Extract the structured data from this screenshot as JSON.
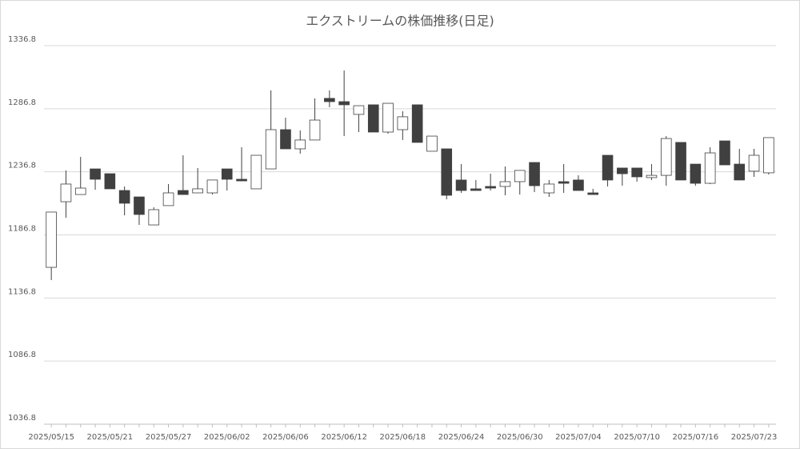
{
  "chart_data": {
    "type": "candlestick",
    "title": "エクストリームの株価推移(日足)",
    "categories": [
      "2025/05/15",
      null,
      null,
      null,
      "2025/05/21",
      null,
      null,
      null,
      "2025/05/27",
      null,
      null,
      null,
      "2025/06/02",
      null,
      null,
      null,
      "2025/06/06",
      null,
      null,
      null,
      "2025/06/12",
      null,
      null,
      null,
      "2025/06/18",
      null,
      null,
      null,
      "2025/06/24",
      null,
      null,
      null,
      "2025/06/30",
      null,
      null,
      null,
      "2025/07/04",
      null,
      null,
      null,
      "2025/07/10",
      null,
      null,
      null,
      "2025/07/16",
      null,
      null,
      null,
      "2025/07/23",
      null
    ],
    "open": [
      1161.1,
      1213.1,
      1218.8,
      1239.1,
      1235.3,
      1222.0,
      1216.9,
      1194.7,
      1210.0,
      1222.0,
      1220.1,
      1220.1,
      1239.1,
      1230.9,
      1223.3,
      1239.1,
      1270.2,
      1255.0,
      1262.0,
      1295.0,
      1292.4,
      1282.3,
      1289.9,
      1268.3,
      1270.2,
      1289.9,
      1253.1,
      1255.0,
      1230.3,
      1223.3,
      1225.2,
      1225.2,
      1229.0,
      1244.2,
      1220.1,
      1229.0,
      1230.3,
      1220.1,
      1249.9,
      1239.8,
      1239.8,
      1232.2,
      1234.0,
      1260.1,
      1242.9,
      1227.7,
      1261.3,
      1242.9,
      1237.3,
      1236.0
    ],
    "high": [
      1204.9,
      1237.9,
      1248.6,
      1239.1,
      1235.3,
      1225.2,
      1216.9,
      1208.7,
      1227.1,
      1249.9,
      1239.8,
      1230.3,
      1239.1,
      1256.3,
      1249.9,
      1301.3,
      1279.7,
      1269.6,
      1295.0,
      1301.3,
      1317.1,
      1289.2,
      1289.9,
      1291.1,
      1284.8,
      1289.9,
      1265.1,
      1255.0,
      1242.9,
      1230.3,
      1235.3,
      1241.0,
      1237.9,
      1244.2,
      1230.3,
      1242.9,
      1234.0,
      1223.3,
      1249.9,
      1239.8,
      1239.8,
      1242.9,
      1265.1,
      1260.1,
      1242.9,
      1256.3,
      1261.3,
      1255.0,
      1255.0,
      1263.9
    ],
    "low": [
      1151.0,
      1200.4,
      1218.8,
      1222.6,
      1223.3,
      1202.3,
      1194.7,
      1194.7,
      1210.0,
      1218.8,
      1220.1,
      1218.8,
      1222.0,
      1229.6,
      1223.3,
      1239.1,
      1255.0,
      1251.2,
      1262.0,
      1288.0,
      1265.1,
      1268.3,
      1268.3,
      1267.0,
      1262.0,
      1260.1,
      1253.1,
      1215.0,
      1220.1,
      1222.0,
      1222.0,
      1218.2,
      1218.8,
      1220.7,
      1216.9,
      1220.1,
      1222.0,
      1218.8,
      1225.2,
      1225.8,
      1229.0,
      1230.3,
      1225.8,
      1230.3,
      1225.8,
      1227.1,
      1242.3,
      1230.3,
      1232.8,
      1234.7
    ],
    "close": [
      1204.9,
      1227.1,
      1223.9,
      1230.9,
      1223.3,
      1211.9,
      1203.0,
      1206.8,
      1220.1,
      1218.8,
      1223.3,
      1230.3,
      1230.9,
      1229.6,
      1249.9,
      1270.2,
      1255.0,
      1262.0,
      1277.8,
      1292.4,
      1289.9,
      1289.2,
      1268.3,
      1291.1,
      1280.4,
      1260.1,
      1265.1,
      1218.2,
      1222.0,
      1222.0,
      1223.9,
      1229.0,
      1237.9,
      1225.8,
      1227.1,
      1227.7,
      1222.0,
      1218.8,
      1230.3,
      1235.3,
      1232.8,
      1234.0,
      1263.2,
      1230.3,
      1227.7,
      1251.8,
      1242.3,
      1230.3,
      1249.9,
      1263.9
    ],
    "up_color": "#ffffff",
    "down_color": "#404040",
    "line_color": "#404040",
    "ylim": [
      1036.8,
      1336.8
    ],
    "yticks": [
      1036.8,
      1086.8,
      1136.8,
      1186.8,
      1236.8,
      1286.8,
      1336.8
    ],
    "grid": true
  }
}
